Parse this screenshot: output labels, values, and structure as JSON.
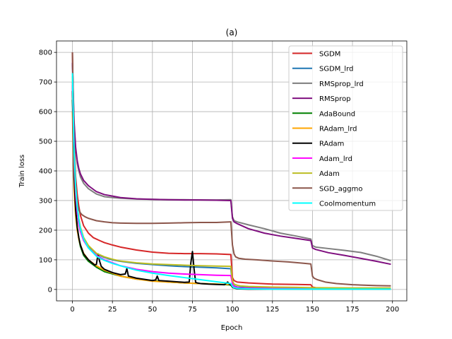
{
  "chart_data": {
    "type": "line",
    "title": "(a)",
    "xlabel": "Epoch",
    "ylabel": "Train loss",
    "xlim": [
      -9.95,
      208.95
    ],
    "ylim": [
      -38.5,
      838.5
    ],
    "xticks": [
      0,
      25,
      50,
      75,
      100,
      125,
      150,
      175,
      200
    ],
    "yticks": [
      0,
      100,
      200,
      300,
      400,
      500,
      600,
      700,
      800
    ],
    "grid": true,
    "legend_position": "top-right",
    "series": [
      {
        "name": "SGDM",
        "color": "#d62728",
        "x": [
          0,
          1,
          2,
          3,
          4,
          5,
          7,
          10,
          13,
          17,
          20,
          25,
          30,
          40,
          50,
          60,
          70,
          80,
          90,
          99,
          100,
          101,
          103,
          110,
          125,
          140,
          148,
          149,
          150,
          152,
          160,
          175,
          190,
          199
        ],
        "y": [
          800,
          500,
          380,
          320,
          280,
          250,
          215,
          190,
          175,
          165,
          158,
          150,
          143,
          133,
          126,
          122,
          121,
          121,
          120,
          118,
          40,
          30,
          25,
          22,
          18,
          17,
          16,
          16,
          8,
          6,
          4,
          3,
          2,
          2
        ]
      },
      {
        "name": "SGDM_lrd",
        "color": "#1f77b4",
        "x": [
          0,
          1,
          2,
          3,
          4,
          5,
          7,
          10,
          13,
          17,
          20,
          25,
          30,
          40,
          50,
          60,
          70,
          80,
          90,
          99,
          100,
          101,
          103,
          110,
          125,
          140,
          150,
          152,
          160,
          175,
          190,
          199
        ],
        "y": [
          690,
          420,
          320,
          265,
          225,
          200,
          170,
          145,
          128,
          115,
          108,
          100,
          95,
          88,
          84,
          80,
          77,
          75,
          73,
          70,
          20,
          12,
          8,
          6,
          5,
          4,
          3,
          3,
          3,
          2,
          2,
          2
        ]
      },
      {
        "name": "RMSprop_lrd",
        "color": "#7f7f7f",
        "x": [
          0,
          1,
          2,
          3,
          4,
          5,
          7,
          10,
          15,
          20,
          25,
          30,
          40,
          50,
          60,
          70,
          80,
          90,
          99,
          100,
          101,
          103,
          110,
          120,
          130,
          140,
          149,
          150,
          152,
          160,
          170,
          180,
          190,
          199
        ],
        "y": [
          760,
          560,
          470,
          425,
          400,
          380,
          358,
          340,
          322,
          313,
          310,
          308,
          305,
          304,
          303,
          303,
          302,
          302,
          303,
          245,
          232,
          228,
          218,
          205,
          190,
          180,
          170,
          148,
          143,
          138,
          132,
          125,
          112,
          97
        ]
      },
      {
        "name": "RMSprop",
        "color": "#7f0f7f",
        "x": [
          0,
          1,
          2,
          3,
          4,
          5,
          7,
          10,
          15,
          20,
          25,
          30,
          40,
          50,
          60,
          70,
          80,
          90,
          99,
          100,
          101,
          103,
          110,
          120,
          130,
          140,
          149,
          150,
          152,
          160,
          170,
          180,
          190,
          199
        ],
        "y": [
          765,
          570,
          480,
          435,
          408,
          390,
          368,
          350,
          330,
          320,
          315,
          310,
          306,
          304,
          303,
          302,
          302,
          301,
          300,
          240,
          228,
          222,
          205,
          190,
          180,
          172,
          165,
          140,
          135,
          124,
          115,
          105,
          95,
          85
        ]
      },
      {
        "name": "AdaBound",
        "color": "#008000",
        "x": [
          0,
          1,
          2,
          3,
          4,
          5,
          7,
          10,
          15,
          20,
          30,
          40,
          50,
          60,
          70,
          80,
          90,
          99,
          100,
          102,
          105,
          110,
          125,
          140,
          150,
          175,
          199
        ],
        "y": [
          640,
          380,
          270,
          210,
          170,
          145,
          115,
          95,
          75,
          60,
          45,
          35,
          30,
          25,
          22,
          20,
          18,
          15,
          8,
          4,
          3,
          2,
          2,
          1,
          1,
          1,
          1
        ]
      },
      {
        "name": "RAdam_lrd",
        "color": "#ffa500",
        "x": [
          0,
          1,
          2,
          3,
          4,
          5,
          7,
          10,
          15,
          20,
          25,
          30,
          40,
          50,
          60,
          70,
          80,
          90,
          99,
          100,
          102,
          105,
          110,
          125,
          140,
          150,
          175,
          199
        ],
        "y": [
          600,
          340,
          250,
          200,
          170,
          150,
          122,
          100,
          80,
          65,
          55,
          45,
          35,
          28,
          25,
          22,
          20,
          18,
          17,
          8,
          5,
          4,
          3,
          3,
          2,
          2,
          2,
          2
        ]
      },
      {
        "name": "RAdam",
        "color": "#000000",
        "x": [
          0,
          1,
          2,
          3,
          4,
          5,
          7,
          10,
          14,
          15,
          16,
          17,
          18,
          20,
          25,
          30,
          33,
          34,
          35,
          40,
          50,
          52,
          53,
          54,
          60,
          65,
          70,
          73,
          74,
          75,
          76,
          77,
          78,
          80,
          85,
          90,
          95,
          97,
          98,
          99,
          100,
          101,
          103,
          105,
          110,
          125,
          140,
          150,
          175,
          199
        ],
        "y": [
          670,
          380,
          270,
          210,
          175,
          150,
          120,
          100,
          82,
          85,
          120,
          95,
          78,
          68,
          57,
          50,
          52,
          70,
          45,
          38,
          30,
          32,
          45,
          30,
          28,
          26,
          24,
          25,
          90,
          128,
          70,
          24,
          22,
          20,
          18,
          17,
          16,
          25,
          18,
          15,
          8,
          5,
          3,
          2,
          1,
          1,
          1,
          1,
          1,
          1
        ]
      },
      {
        "name": "Adam_lrd",
        "color": "#ff00ff",
        "x": [
          0,
          1,
          2,
          3,
          4,
          5,
          7,
          10,
          15,
          20,
          25,
          30,
          40,
          50,
          60,
          70,
          80,
          90,
          99,
          100,
          101,
          103,
          105,
          110,
          125,
          140,
          150,
          175,
          199
        ],
        "y": [
          700,
          430,
          320,
          260,
          220,
          195,
          165,
          140,
          115,
          100,
          90,
          80,
          68,
          60,
          55,
          52,
          50,
          48,
          47,
          20,
          10,
          7,
          5,
          4,
          3,
          3,
          2,
          2,
          2
        ]
      },
      {
        "name": "Adam",
        "color": "#bcbd22",
        "x": [
          0,
          1,
          2,
          3,
          4,
          5,
          7,
          10,
          15,
          20,
          25,
          30,
          40,
          50,
          60,
          70,
          80,
          90,
          99,
          100,
          101,
          103,
          105,
          110,
          125,
          140,
          150,
          175,
          199
        ],
        "y": [
          720,
          450,
          340,
          280,
          240,
          210,
          175,
          148,
          122,
          110,
          102,
          96,
          90,
          86,
          84,
          82,
          80,
          79,
          78,
          30,
          18,
          14,
          12,
          10,
          8,
          7,
          6,
          5,
          5
        ]
      },
      {
        "name": "SGD_aggmo",
        "color": "#8c564b",
        "x": [
          0,
          1,
          2,
          3,
          4,
          5,
          6,
          8,
          10,
          15,
          20,
          25,
          30,
          40,
          50,
          60,
          70,
          80,
          90,
          99,
          100,
          101,
          102,
          104,
          108,
          115,
          125,
          135,
          145,
          149,
          150,
          151,
          153,
          158,
          165,
          175,
          185,
          190,
          199
        ],
        "y": [
          800,
          480,
          350,
          295,
          270,
          258,
          252,
          245,
          240,
          232,
          228,
          225,
          224,
          223,
          223,
          224,
          225,
          226,
          226,
          228,
          150,
          120,
          110,
          105,
          102,
          100,
          96,
          93,
          88,
          86,
          45,
          38,
          33,
          25,
          20,
          16,
          14,
          13,
          12
        ]
      },
      {
        "name": "Coolmomentum",
        "color": "#00ffff",
        "x": [
          0,
          1,
          2,
          3,
          4,
          5,
          7,
          10,
          15,
          20,
          25,
          30,
          40,
          50,
          60,
          70,
          80,
          90,
          99,
          100,
          101,
          103,
          105,
          110,
          125,
          140,
          150,
          175,
          199
        ],
        "y": [
          730,
          470,
          350,
          280,
          235,
          205,
          170,
          140,
          112,
          98,
          88,
          80,
          65,
          55,
          47,
          40,
          33,
          26,
          20,
          10,
          6,
          4,
          3,
          2,
          1,
          1,
          1,
          1,
          1
        ]
      }
    ]
  }
}
